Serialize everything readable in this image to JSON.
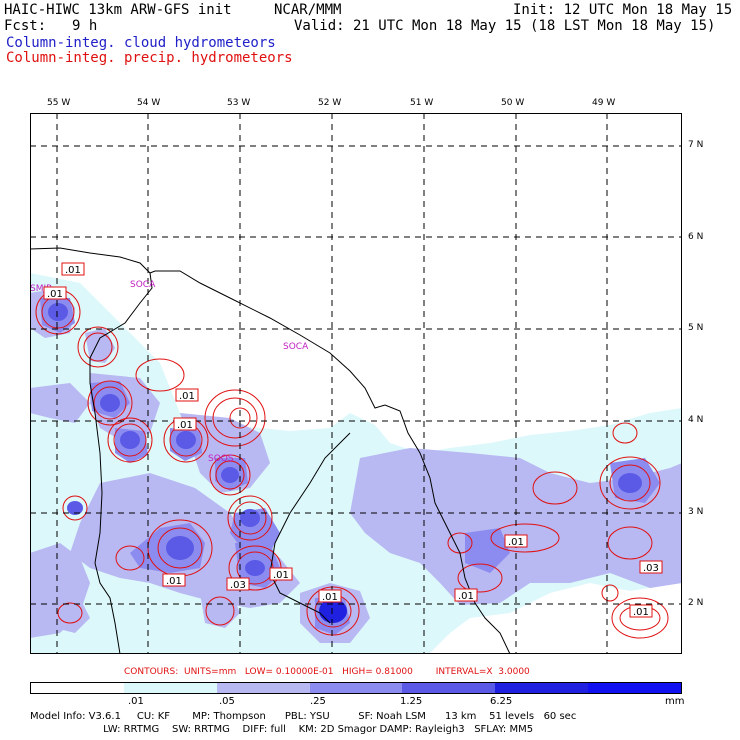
{
  "header": {
    "model": "HAIC-HIWC 13km ARW-GFS init",
    "org": "NCAR/MMM",
    "init": "Init: 12 UTC Mon 18 May 15",
    "fcst_label": "Fcst:",
    "fcst_value": "9 h",
    "valid": "Valid: 21 UTC Mon 18 May 15 (18 LST Mon 18 May 15)",
    "field1": "Column-integ. cloud hydrometeors",
    "field2": "Column-integ. precip. hydrometeors"
  },
  "map": {
    "lon_labels": [
      "55 W",
      "54 W",
      "53 W",
      "52 W",
      "51 W",
      "50 W",
      "49 W"
    ],
    "lat_labels": [
      "7 N",
      "6 N",
      "5 N",
      "4 N",
      "3 N",
      "2 N"
    ],
    "stations": [
      "SMJP",
      "SOCA",
      "SOCA",
      "SOOS"
    ],
    "contour_labels": [
      ".01",
      ".01",
      ".01",
      ".01",
      ".01",
      ".01",
      ".03",
      ".01",
      ".01",
      ".01",
      ".03",
      ".01"
    ],
    "colors": {
      "cloud1": "#dcf8fb",
      "cloud2": "#b8b8f2",
      "cloud3": "#8c8cf0",
      "cloud4": "#5a5ae6",
      "cloud5": "#2020e0",
      "precip": "#e01010",
      "station": "#c020c0"
    }
  },
  "contours": {
    "text": "CONTOURS:  UNITS=mm   LOW= 0.10000E-01   HIGH= 0.81000        INTERVAL=X  3.0000"
  },
  "colorbar": {
    "colors": [
      "#ffffff",
      "#dcf8fb",
      "#b8b8f2",
      "#8c8cf0",
      "#5a5ae6",
      "#2020e0",
      "#1010f0"
    ],
    "labels": [
      ".01",
      ".05",
      ".25",
      "1.25",
      "6.25"
    ],
    "unit": "mm"
  },
  "model_info": {
    "line1": "Model Info: V3.6.1     CU: KF       MP: Thompson      PBL: YSU         SF: Noah LSM      13 km    51 levels   60 sec",
    "line2": "                       LW: RRTMG    SW: RRTMG    DIFF: full    KM: 2D Smagor DAMP: Rayleigh3   SFLAY: MM5"
  }
}
